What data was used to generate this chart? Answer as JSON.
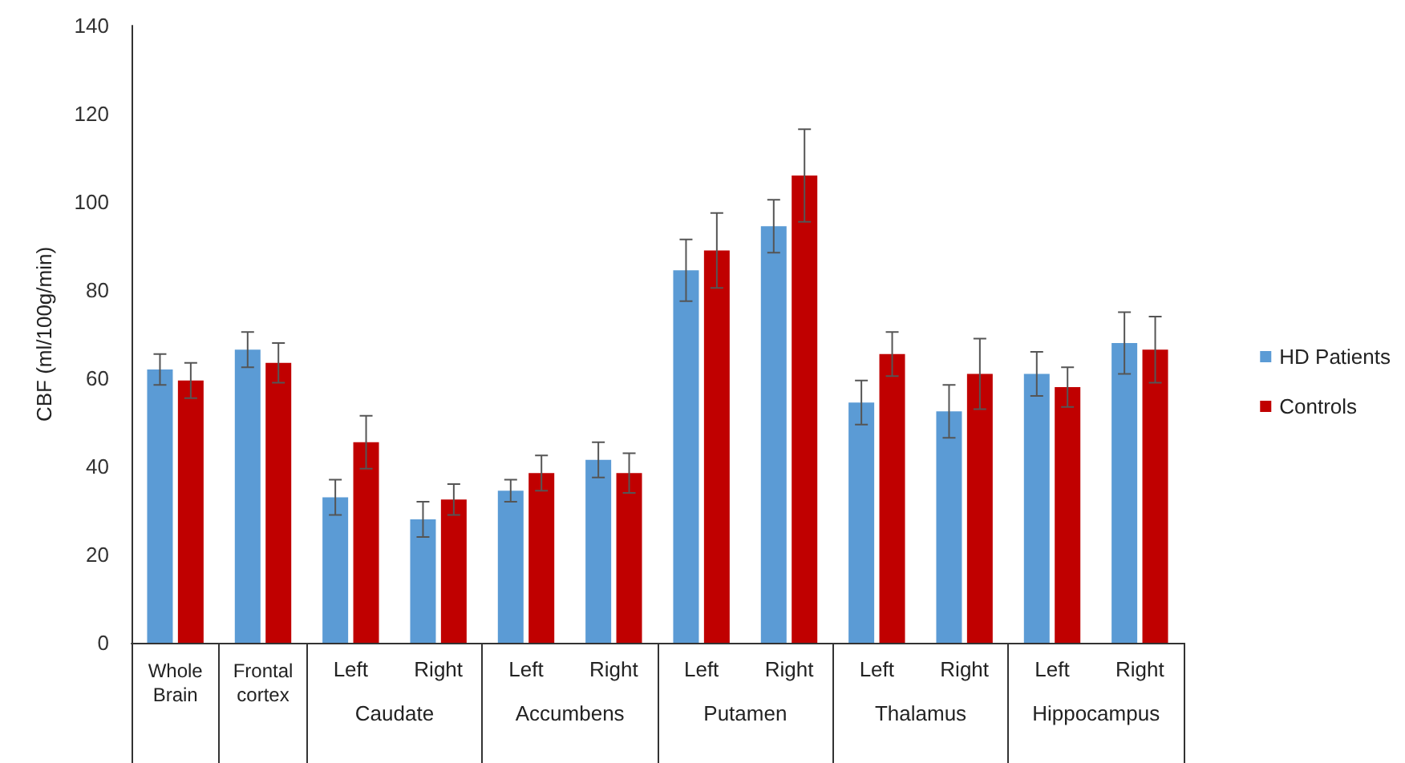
{
  "chart_data": {
    "type": "bar",
    "ylabel": "CBF (ml/100g/min)",
    "categories": [
      "Whole Brain",
      "Frontal cortex",
      "Left",
      "Right",
      "Left",
      "Right",
      "Left",
      "Right",
      "Left",
      "Right",
      "Left",
      "Right"
    ],
    "annotations": [
      "Caudate",
      "Accumbens",
      "Putamen",
      "Thalamus",
      "Hippocampus"
    ],
    "series": [
      {
        "name": "HD Patients",
        "color": "#5b9bd5",
        "values": [
          62,
          66.5,
          33,
          28,
          34.5,
          41.5,
          84.5,
          94.5,
          54.5,
          52.5,
          61,
          68
        ],
        "errors": [
          3.5,
          4,
          4,
          4,
          2.5,
          4,
          7,
          6,
          5,
          6,
          5,
          7
        ]
      },
      {
        "name": "Controls",
        "color": "#c00000",
        "values": [
          59.5,
          63.5,
          45.5,
          32.5,
          38.5,
          38.5,
          89,
          106,
          65.5,
          61,
          58,
          66.5
        ],
        "errors": [
          4,
          4.5,
          6,
          3.5,
          4,
          4.5,
          8.5,
          10.5,
          5,
          8,
          4.5,
          7.5
        ]
      }
    ],
    "ylim": [
      0,
      140
    ],
    "yticks": [
      0,
      20,
      40,
      60,
      80,
      100,
      120,
      140
    ],
    "grid": false,
    "legend": "right"
  }
}
